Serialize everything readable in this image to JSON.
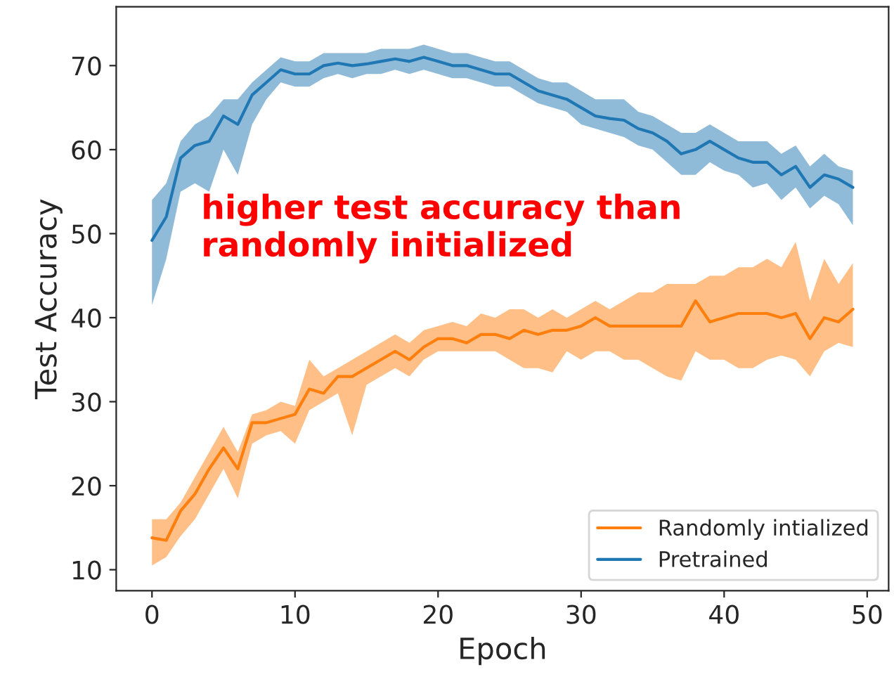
{
  "chart_data": {
    "type": "line",
    "xlabel": "Epoch",
    "ylabel": "Test Accuracy",
    "x": [
      0,
      1,
      2,
      3,
      4,
      5,
      6,
      7,
      8,
      9,
      10,
      11,
      12,
      13,
      14,
      15,
      16,
      17,
      18,
      19,
      20,
      21,
      22,
      23,
      24,
      25,
      26,
      27,
      28,
      29,
      30,
      31,
      32,
      33,
      34,
      35,
      36,
      37,
      38,
      39,
      40,
      41,
      42,
      43,
      44,
      45,
      46,
      47,
      48,
      49
    ],
    "xlim": [
      -2.5,
      51.5
    ],
    "ylim": [
      7.5,
      77
    ],
    "xticks": [
      0,
      10,
      20,
      30,
      40,
      50
    ],
    "yticks": [
      10,
      20,
      30,
      40,
      50,
      60,
      70
    ],
    "grid": false,
    "legend": "bottom right",
    "annotations": [
      "higher test accuracy than\nrandomly initialized"
    ],
    "series": [
      {
        "name": "Randomly intialized",
        "color": "#ff7f0e",
        "values": [
          13.8,
          13.5,
          17,
          19,
          22,
          24.5,
          22,
          27.5,
          27.5,
          28,
          28.5,
          31.5,
          31,
          33,
          33,
          34,
          35,
          36,
          35,
          36.5,
          37.5,
          37.5,
          37,
          38,
          38,
          37.5,
          38.5,
          38,
          38.5,
          38.5,
          39,
          40,
          39,
          39,
          39,
          39,
          39,
          39,
          42,
          39.5,
          40,
          40.5,
          40.5,
          40.5,
          40,
          40.5,
          37.5,
          40,
          39.5,
          41
        ],
        "lower": [
          10.5,
          11.5,
          14,
          16,
          19,
          22,
          18.5,
          25,
          26,
          26.5,
          25,
          29,
          30,
          31,
          26,
          32,
          33,
          34,
          33,
          35,
          36,
          36,
          36,
          36,
          36,
          35,
          34,
          34,
          33.5,
          36,
          35,
          36,
          36,
          35,
          35,
          34,
          33,
          32.5,
          36,
          35,
          35,
          34,
          34,
          35,
          35.5,
          35,
          33,
          36,
          37,
          36.5
        ],
        "upper": [
          16,
          16,
          18,
          21,
          24,
          27,
          24,
          28.5,
          29,
          30,
          29.5,
          35,
          33,
          34,
          35,
          36,
          37,
          38,
          37,
          38.5,
          39,
          39.5,
          39,
          40.5,
          40,
          41,
          41,
          40,
          41,
          40,
          41,
          42,
          41,
          42,
          43,
          43,
          44,
          44,
          44,
          45,
          45,
          46,
          46,
          47,
          46,
          49,
          42,
          47,
          44,
          46.5
        ]
      },
      {
        "name": "Pretrained",
        "color": "#1f77b4",
        "values": [
          49.2,
          52,
          59,
          60.5,
          61,
          64,
          63,
          66.5,
          68,
          69.5,
          69,
          69,
          70,
          70.3,
          70,
          70.2,
          70.5,
          70.8,
          70.5,
          71,
          70.5,
          70,
          70,
          69.5,
          69,
          69,
          68,
          67,
          66.5,
          66,
          65,
          64,
          63.7,
          63.5,
          62.5,
          62,
          61,
          59.5,
          60,
          61,
          60,
          59,
          58.5,
          58.5,
          57,
          58,
          55.5,
          57,
          56.5,
          55.5
        ],
        "lower": [
          41.5,
          47,
          55,
          56,
          55,
          60,
          57,
          63,
          66,
          68,
          67.5,
          67.5,
          68.5,
          69,
          68.5,
          69,
          69,
          69.5,
          69,
          69.5,
          69,
          68.5,
          68.5,
          68,
          67.5,
          67.5,
          66.5,
          65.5,
          65,
          64.5,
          63,
          62.5,
          62,
          61.5,
          60.5,
          60,
          58.5,
          57,
          57,
          58.5,
          57.5,
          57,
          55.5,
          56,
          54,
          55.5,
          53,
          54.5,
          53.5,
          51
        ],
        "upper": [
          54,
          56,
          61,
          63,
          64,
          66,
          66,
          68,
          69.5,
          71,
          70.5,
          70.5,
          71.5,
          71.5,
          71.5,
          71.5,
          72,
          72,
          72,
          72.5,
          72,
          71.5,
          71.5,
          71,
          70.5,
          70.5,
          69.5,
          68.5,
          68,
          68,
          67,
          66,
          66,
          66,
          64.5,
          64,
          63,
          62,
          62,
          63,
          62,
          61,
          61,
          61,
          59.5,
          60.5,
          58,
          59.5,
          58,
          57.5
        ]
      }
    ]
  }
}
